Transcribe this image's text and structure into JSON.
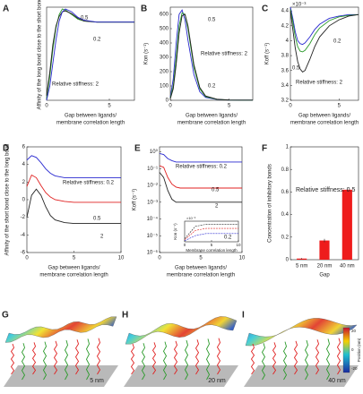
{
  "chart_data": [
    {
      "panel": "A",
      "type": "line",
      "ylabel": "Affinity of the long bond close to the short bond",
      "xlabel": [
        "Gap between ligands/",
        "membrane correlation length"
      ],
      "xlim": [
        0,
        7
      ],
      "xticks": [
        0,
        5
      ],
      "ylim": [
        0,
        1
      ],
      "x": [
        0,
        0.25,
        0.5,
        0.75,
        1,
        1.25,
        1.5,
        2,
        2.5,
        3,
        4,
        5,
        6,
        7
      ],
      "series": [
        {
          "color": "#2a9a2a",
          "values": [
            0.02,
            0.25,
            0.55,
            0.78,
            0.92,
            0.98,
            0.97,
            0.92,
            0.87,
            0.85,
            0.84,
            0.84,
            0.84,
            0.84
          ]
        },
        {
          "color": "#222222",
          "values": [
            0.05,
            0.3,
            0.6,
            0.8,
            0.9,
            0.95,
            0.96,
            0.93,
            0.88,
            0.85,
            0.84,
            0.84,
            0.84,
            0.84
          ]
        },
        {
          "color": "#2a2ad0",
          "values": [
            0,
            0.15,
            0.4,
            0.65,
            0.85,
            0.95,
            0.98,
            0.95,
            0.89,
            0.86,
            0.84,
            0.84,
            0.84,
            0.84
          ]
        }
      ],
      "annotations": [
        {
          "text": "0.5",
          "color": "#2a9a2a"
        },
        {
          "text": "0.2",
          "color": "#2a2ad0"
        },
        {
          "text": "Relative stiffness: 2",
          "color": "#222222"
        }
      ]
    },
    {
      "panel": "B",
      "type": "line",
      "ylabel": "Kon (s⁻¹)",
      "xlabel": [
        "Gap between ligands/",
        "membrane correlation length"
      ],
      "xlim": [
        0,
        7
      ],
      "xticks": [
        0,
        5
      ],
      "ylim": [
        0,
        650
      ],
      "yticks": [
        0,
        100,
        200,
        300,
        400,
        500,
        600
      ],
      "x": [
        0,
        0.25,
        0.5,
        0.75,
        1,
        1.25,
        1.5,
        2,
        2.5,
        3,
        4,
        5,
        6,
        7
      ],
      "series": [
        {
          "color": "#2a2ad0",
          "values": [
            20,
            150,
            400,
            600,
            630,
            560,
            420,
            180,
            60,
            20,
            5,
            2,
            1,
            1
          ]
        },
        {
          "color": "#2a9a2a",
          "values": [
            15,
            100,
            300,
            520,
            610,
            600,
            500,
            230,
            80,
            25,
            6,
            2,
            1,
            1
          ]
        },
        {
          "color": "#222222",
          "values": [
            10,
            80,
            250,
            470,
            590,
            600,
            520,
            250,
            90,
            30,
            7,
            2,
            1,
            1
          ]
        }
      ],
      "annotations": [
        {
          "text": "0.5",
          "color": "#2a9a2a"
        },
        {
          "text": "Relative stiffness: 2",
          "color": "#222222"
        },
        {
          "text": "0.2",
          "color": "#2a2ad0"
        }
      ]
    },
    {
      "panel": "C",
      "type": "line",
      "ylabel": "Koff (s⁻¹)",
      "multiplier": "×10⁻³",
      "xlabel": [
        "Gap between ligands/",
        "membrane correlation length"
      ],
      "xlim": [
        0,
        7
      ],
      "xticks": [
        0,
        5
      ],
      "ylim": [
        3.2,
        4.45
      ],
      "yticks": [
        3.2,
        3.4,
        3.6,
        3.8,
        4,
        4.2,
        4.4
      ],
      "x": [
        0,
        0.25,
        0.5,
        0.75,
        1,
        1.25,
        1.5,
        2,
        2.5,
        3,
        4,
        5,
        6,
        7
      ],
      "series": [
        {
          "color": "#2a2ad0",
          "values": [
            4.45,
            4.3,
            4.12,
            4.0,
            3.96,
            3.95,
            3.97,
            4.05,
            4.15,
            4.22,
            4.3,
            4.33,
            4.35,
            4.35
          ]
        },
        {
          "color": "#2a9a2a",
          "values": [
            4.42,
            4.25,
            4.05,
            3.92,
            3.86,
            3.85,
            3.87,
            3.96,
            4.08,
            4.17,
            4.27,
            4.32,
            4.34,
            4.35
          ]
        },
        {
          "color": "#222222",
          "values": [
            4.4,
            4.15,
            3.9,
            3.72,
            3.62,
            3.58,
            3.6,
            3.75,
            3.92,
            4.05,
            4.2,
            4.28,
            4.33,
            4.35
          ]
        }
      ],
      "annotations": [
        {
          "text": "0.2",
          "color": "#2a2ad0"
        },
        {
          "text": "0.5",
          "color": "#2a9a2a"
        },
        {
          "text": "Relative stiffness: 2",
          "color": "#222222"
        }
      ]
    },
    {
      "panel": "D",
      "type": "line",
      "ylabel": "Affinity of the short bond close to the long bond",
      "xlabel": [
        "Gap between ligands/",
        "membrane correlation length"
      ],
      "xlim": [
        0,
        10
      ],
      "xticks": [
        0,
        5,
        10
      ],
      "ylim": [
        -6,
        6
      ],
      "yticks": [
        -6,
        -4,
        -2,
        0,
        2,
        4,
        6
      ],
      "x": [
        0,
        0.5,
        1,
        1.5,
        2,
        2.5,
        3,
        4,
        5,
        6,
        7,
        8,
        9,
        10
      ],
      "series": [
        {
          "color": "#2a2ad0",
          "values": [
            4.5,
            5,
            4.8,
            4.2,
            3.5,
            3.0,
            2.7,
            2.5,
            2.5,
            2.5,
            2.5,
            2.5,
            2.5,
            2.5
          ]
        },
        {
          "color": "#e02020",
          "values": [
            1.5,
            2.8,
            2.5,
            1.6,
            0.8,
            0.3,
            0,
            -0.2,
            -0.3,
            -0.3,
            -0.3,
            -0.3,
            -0.3,
            -0.3
          ]
        },
        {
          "color": "#222222",
          "values": [
            -2,
            0.5,
            1.2,
            0.5,
            -0.8,
            -1.8,
            -2.3,
            -2.6,
            -2.7,
            -2.7,
            -2.7,
            -2.7,
            -2.7,
            -2.7
          ]
        }
      ],
      "annotations": [
        {
          "text": "Relative stiffness: 0.2",
          "color": "#2a2ad0"
        },
        {
          "text": "0.5",
          "color": "#e02020"
        },
        {
          "text": "2",
          "color": "#222222"
        }
      ]
    },
    {
      "panel": "E",
      "type": "line",
      "ylabel": "Koff (s⁻¹)",
      "log_y": true,
      "xlabel": [
        "Gap between ligands/",
        "membrane correlation length"
      ],
      "xlim": [
        0,
        10
      ],
      "xticks": [
        0,
        5,
        10
      ],
      "ylim": [
        1e-06,
        2
      ],
      "yticks": [
        {
          "value": 1,
          "label": "10⁰"
        },
        {
          "value": 0.1,
          "label": "10⁻¹"
        },
        {
          "value": 0.01,
          "label": "10⁻²"
        },
        {
          "value": 0.001,
          "label": "10⁻³"
        },
        {
          "value": 0.0001,
          "label": "10⁻⁴"
        },
        {
          "value": 1e-05,
          "label": "10⁻⁵"
        },
        {
          "value": 1e-06,
          "label": "10⁻⁶"
        }
      ],
      "x": [
        0,
        0.5,
        1,
        1.5,
        2,
        2.5,
        3,
        4,
        5,
        6,
        7,
        8,
        9,
        10
      ],
      "series": [
        {
          "color": "#2a2ad0",
          "values": [
            0.8,
            0.7,
            0.4,
            0.3,
            0.25,
            0.25,
            0.25,
            0.25,
            0.25,
            0.25,
            0.25,
            0.25,
            0.25,
            0.25
          ]
        },
        {
          "color": "#e02020",
          "values": [
            0.15,
            0.12,
            0.03,
            0.012,
            0.008,
            0.007,
            0.007,
            0.007,
            0.007,
            0.007,
            0.007,
            0.007,
            0.007,
            0.007
          ]
        },
        {
          "color": "#222222",
          "values": [
            0.06,
            0.03,
            0.005,
            0.0015,
            0.001,
            0.001,
            0.001,
            0.001,
            0.001,
            0.001,
            0.001,
            0.001,
            0.001,
            0.001
          ]
        }
      ],
      "annotations": [
        {
          "text": "Relative stiffness: 0.2",
          "color": "#2a2ad0"
        },
        {
          "text": "0.5",
          "color": "#e02020"
        },
        {
          "text": "2",
          "color": "#222222"
        }
      ],
      "inset": {
        "type": "line",
        "ylabel": "Kon (s⁻¹)",
        "multiplier": "×10⁻³",
        "xlabel": [
          "Membrane correlation length"
        ],
        "xlim": [
          0,
          10
        ],
        "xticks": [
          0,
          5,
          10
        ],
        "ylim": [
          0,
          2
        ],
        "dashed": true,
        "x": [
          0,
          2,
          4,
          6,
          8,
          10
        ],
        "series": [
          {
            "color": "#222222",
            "values": [
              0.3,
              1.5,
              1.7,
              1.7,
              1.7,
              1.7
            ]
          },
          {
            "color": "#e02020",
            "values": [
              0.2,
              1.1,
              1.3,
              1.3,
              1.3,
              1.3
            ]
          },
          {
            "color": "#2a2ad0",
            "values": [
              0.1,
              0.6,
              0.8,
              0.8,
              0.8,
              0.8
            ]
          }
        ],
        "annotations": [
          {
            "text": "0.2",
            "color": "#2a2ad0"
          }
        ]
      }
    },
    {
      "panel": "F",
      "type": "bar",
      "ylabel": "Concentration of inhibitory bonds",
      "xlabel": [
        "Gap"
      ],
      "categories": [
        "5 nm",
        "20 nm",
        "40 nm"
      ],
      "values": [
        0.01,
        0.17,
        0.62
      ],
      "errors": [
        0.005,
        0.015,
        0.01
      ],
      "color": "#ee1c1c",
      "ylim": [
        0,
        1
      ],
      "yticks": [
        0,
        0.2,
        0.4,
        0.6,
        0.8,
        1
      ],
      "annotations": [
        {
          "text": "Relative stiffness: 0.5",
          "color": "#ee1c1c"
        }
      ]
    }
  ],
  "illustrations": [
    {
      "panel": "G",
      "label": "5 nm"
    },
    {
      "panel": "H",
      "label": "20 nm"
    },
    {
      "panel": "I",
      "label": "40 nm"
    }
  ],
  "colorbar": {
    "label": "Position (nm)",
    "ticks": [
      "20",
      "0",
      "-20"
    ]
  }
}
